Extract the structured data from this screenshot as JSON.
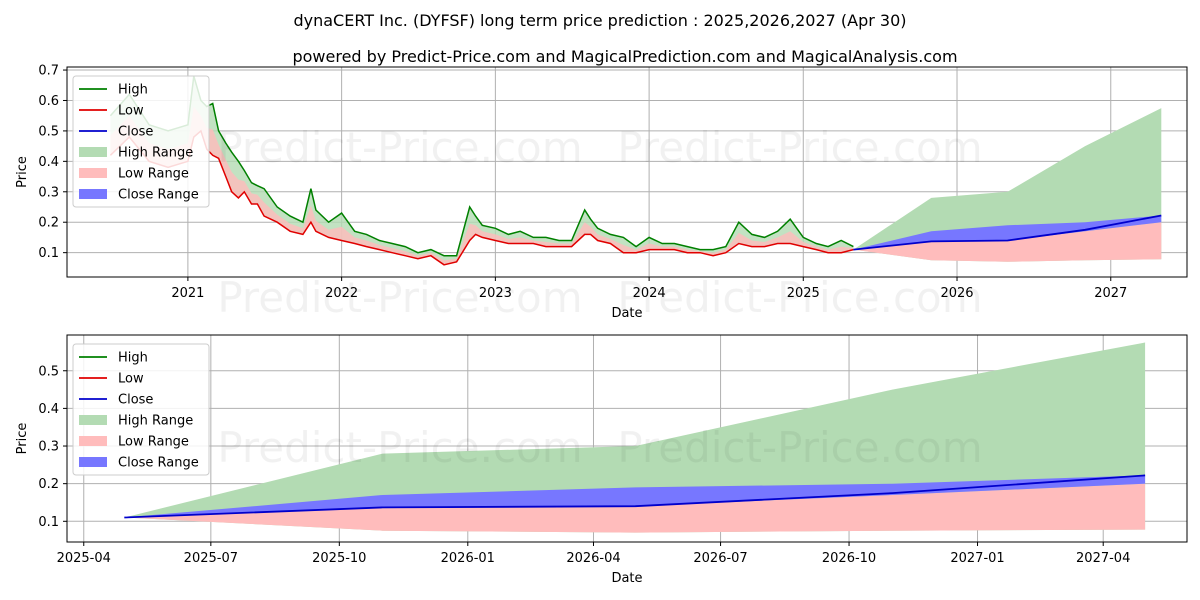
{
  "figure": {
    "title": "dynaCERT Inc. (DYFSF) long term price prediction : 2025,2026,2027 (Apr 30)",
    "subtitle": "powered by Predict-Price.com and MagicalPrediction.com and MagicalAnalysis.com",
    "watermark": "Predict-Price.com"
  },
  "colors": {
    "high": "#008000",
    "low": "#e00000",
    "close": "#0000cc",
    "high_range": "#b3dbb3",
    "low_range": "#ffbcbc",
    "close_range": "#7777ff"
  },
  "chart_data": [
    {
      "type": "line",
      "xlabel": "Date",
      "ylabel": "Price",
      "xlim": [
        "2020-03-20",
        "2027-07-01"
      ],
      "ylim": [
        0.02,
        0.71
      ],
      "grid": true,
      "legend": "upper-left",
      "x_ticks": [
        "2021",
        "2022",
        "2023",
        "2024",
        "2025",
        "2026",
        "2027"
      ],
      "y_ticks": [
        "0.1",
        "0.2",
        "0.3",
        "0.4",
        "0.5",
        "0.6",
        "0.7"
      ],
      "legend_items": [
        "High",
        "Low",
        "Close",
        "High Range",
        "Low Range",
        "Close Range"
      ],
      "history": {
        "dates": [
          "2020-07-01",
          "2020-08-15",
          "2020-10-01",
          "2020-11-15",
          "2021-01-01",
          "2021-01-15",
          "2021-02-01",
          "2021-02-15",
          "2021-03-01",
          "2021-03-15",
          "2021-04-01",
          "2021-04-15",
          "2021-05-01",
          "2021-05-15",
          "2021-06-01",
          "2021-06-15",
          "2021-07-01",
          "2021-08-01",
          "2021-09-01",
          "2021-10-01",
          "2021-10-20",
          "2021-11-01",
          "2021-12-01",
          "2022-01-01",
          "2022-02-01",
          "2022-03-01",
          "2022-04-01",
          "2022-05-01",
          "2022-06-01",
          "2022-07-01",
          "2022-08-01",
          "2022-09-01",
          "2022-10-01",
          "2022-11-01",
          "2022-11-15",
          "2022-12-01",
          "2023-01-01",
          "2023-02-01",
          "2023-03-01",
          "2023-04-01",
          "2023-05-01",
          "2023-06-01",
          "2023-07-01",
          "2023-08-01",
          "2023-08-15",
          "2023-09-01",
          "2023-10-01",
          "2023-11-01",
          "2023-12-01",
          "2024-01-01",
          "2024-02-01",
          "2024-03-01",
          "2024-04-01",
          "2024-05-01",
          "2024-06-01",
          "2024-07-01",
          "2024-08-01",
          "2024-09-01",
          "2024-10-01",
          "2024-11-01",
          "2024-12-01",
          "2025-01-01",
          "2025-02-01",
          "2025-03-01",
          "2025-04-01",
          "2025-04-30"
        ],
        "high": [
          0.55,
          0.62,
          0.52,
          0.5,
          0.52,
          0.68,
          0.6,
          0.58,
          0.59,
          0.5,
          0.46,
          0.43,
          0.4,
          0.37,
          0.33,
          0.32,
          0.31,
          0.25,
          0.22,
          0.2,
          0.31,
          0.24,
          0.2,
          0.23,
          0.17,
          0.16,
          0.14,
          0.13,
          0.12,
          0.1,
          0.11,
          0.09,
          0.09,
          0.25,
          0.22,
          0.19,
          0.18,
          0.16,
          0.17,
          0.15,
          0.15,
          0.14,
          0.14,
          0.24,
          0.21,
          0.18,
          0.16,
          0.15,
          0.12,
          0.15,
          0.13,
          0.13,
          0.12,
          0.11,
          0.11,
          0.12,
          0.2,
          0.16,
          0.15,
          0.17,
          0.21,
          0.15,
          0.13,
          0.12,
          0.14,
          0.12
        ],
        "low": [
          0.42,
          0.48,
          0.4,
          0.38,
          0.4,
          0.48,
          0.5,
          0.44,
          0.42,
          0.41,
          0.35,
          0.3,
          0.28,
          0.3,
          0.26,
          0.26,
          0.22,
          0.2,
          0.17,
          0.16,
          0.2,
          0.17,
          0.15,
          0.14,
          0.13,
          0.12,
          0.11,
          0.1,
          0.09,
          0.08,
          0.09,
          0.06,
          0.07,
          0.14,
          0.16,
          0.15,
          0.14,
          0.13,
          0.13,
          0.13,
          0.12,
          0.12,
          0.12,
          0.16,
          0.16,
          0.14,
          0.13,
          0.1,
          0.1,
          0.11,
          0.11,
          0.11,
          0.1,
          0.1,
          0.09,
          0.1,
          0.13,
          0.12,
          0.12,
          0.13,
          0.13,
          0.12,
          0.11,
          0.1,
          0.1,
          0.11
        ]
      },
      "forecast": {
        "dates": [
          "2025-04-30",
          "2025-11-01",
          "2026-05-01",
          "2026-11-01",
          "2027-05-01"
        ],
        "close": [
          0.11,
          0.137,
          0.14,
          0.175,
          0.222
        ],
        "high_range": [
          0.11,
          0.28,
          0.3,
          0.45,
          0.575
        ],
        "low_range": [
          0.11,
          0.075,
          0.07,
          0.075,
          0.078
        ],
        "close_range_upper": [
          0.11,
          0.17,
          0.19,
          0.2,
          0.222
        ],
        "close_range_lower": [
          0.11,
          0.135,
          0.14,
          0.17,
          0.2
        ]
      }
    },
    {
      "type": "line",
      "xlabel": "Date",
      "ylabel": "Price",
      "xlim": [
        "2025-03-20",
        "2027-05-31"
      ],
      "ylim": [
        0.045,
        0.595
      ],
      "grid": true,
      "legend": "upper-left",
      "x_ticks": [
        "2025-04",
        "2025-07",
        "2025-10",
        "2026-01",
        "2026-04",
        "2026-07",
        "2026-10",
        "2027-01",
        "2027-04"
      ],
      "y_ticks": [
        "0.1",
        "0.2",
        "0.3",
        "0.4",
        "0.5"
      ],
      "legend_items": [
        "High",
        "Low",
        "Close",
        "High Range",
        "Low Range",
        "Close Range"
      ],
      "forecast": {
        "dates": [
          "2025-04-30",
          "2025-11-01",
          "2026-05-01",
          "2026-11-01",
          "2027-05-01"
        ],
        "close": [
          0.11,
          0.137,
          0.14,
          0.175,
          0.222
        ],
        "high_range": [
          0.11,
          0.28,
          0.3,
          0.45,
          0.575
        ],
        "low_range": [
          0.11,
          0.075,
          0.07,
          0.075,
          0.078
        ],
        "close_range_upper": [
          0.11,
          0.17,
          0.19,
          0.2,
          0.222
        ],
        "close_range_lower": [
          0.11,
          0.135,
          0.14,
          0.17,
          0.2
        ]
      }
    }
  ]
}
